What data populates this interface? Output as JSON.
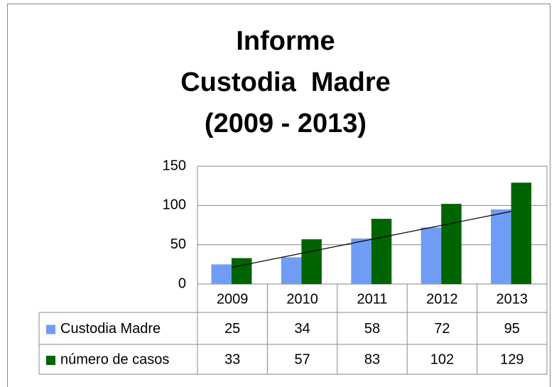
{
  "chart_data": {
    "type": "bar",
    "title": [
      "Informe",
      "Custodia  Madre",
      "(2009 - 2013)"
    ],
    "categories": [
      "2009",
      "2010",
      "2011",
      "2012",
      "2013"
    ],
    "series": [
      {
        "name": "Custodia Madre",
        "color": "#6f9df5",
        "values": [
          25,
          34,
          58,
          72,
          95
        ],
        "trendline": "linear"
      },
      {
        "name": "número de casos",
        "color": "#006400",
        "values": [
          33,
          57,
          83,
          102,
          129
        ]
      }
    ],
    "ylim": [
      0,
      150
    ],
    "yticks": [
      0,
      50,
      100,
      150
    ],
    "grid": true,
    "data_table": true
  }
}
